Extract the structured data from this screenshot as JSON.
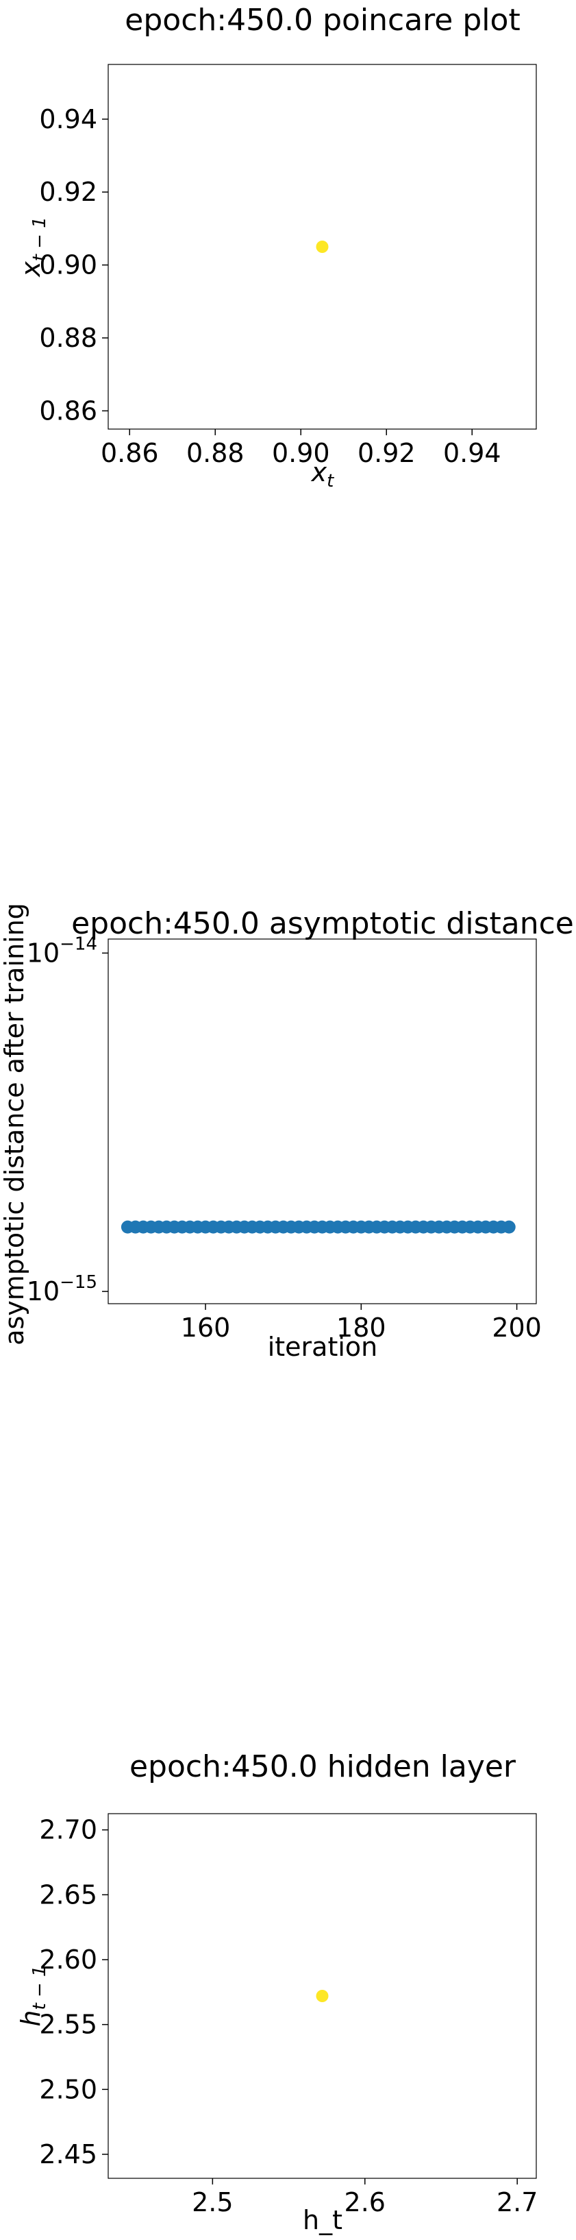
{
  "chart_data": [
    {
      "type": "scatter",
      "title": "epoch:450.0 poincare plot",
      "xlabel": "x_t",
      "ylabel": "x_{t-1}",
      "xlim": [
        0.855,
        0.955
      ],
      "ylim": [
        0.855,
        0.955
      ],
      "xticks": [
        0.86,
        0.88,
        0.9,
        0.92,
        0.94
      ],
      "xtick_labels": [
        "0.86",
        "0.88",
        "0.90",
        "0.92",
        "0.94"
      ],
      "yticks": [
        0.86,
        0.88,
        0.9,
        0.92,
        0.94
      ],
      "ytick_labels": [
        "0.86",
        "0.88",
        "0.90",
        "0.92",
        "0.94"
      ],
      "points": [
        {
          "x": 0.905,
          "y": 0.905
        }
      ],
      "color": "#fde725",
      "grid": false
    },
    {
      "type": "scatter",
      "title": "epoch:450.0 asymptotic distance",
      "xlabel": "iteration",
      "ylabel": "asymptotic distance after training",
      "xlim": [
        147.5,
        202.5
      ],
      "ylim": [
        9.2e-16,
        1.1e-14
      ],
      "yscale": "log",
      "xticks": [
        160,
        180,
        200
      ],
      "xtick_labels": [
        "160",
        "180",
        "200"
      ],
      "yticks": [
        1e-15,
        1e-14
      ],
      "ytick_labels": [
        {
          "base": "10",
          "exp": "−15"
        },
        {
          "base": "10",
          "exp": "−14"
        }
      ],
      "x": [
        150,
        151,
        152,
        153,
        154,
        155,
        156,
        157,
        158,
        159,
        160,
        161,
        162,
        163,
        164,
        165,
        166,
        167,
        168,
        169,
        170,
        171,
        172,
        173,
        174,
        175,
        176,
        177,
        178,
        179,
        180,
        181,
        182,
        183,
        184,
        185,
        186,
        187,
        188,
        189,
        190,
        191,
        192,
        193,
        194,
        195,
        196,
        197,
        198,
        199
      ],
      "y_constant": 1.55e-15,
      "color": "#1f77b4",
      "grid": false
    },
    {
      "type": "scatter",
      "title": "epoch:450.0 hidden layer",
      "xlabel": "h_t",
      "ylabel": "h_{t-1}",
      "xlim": [
        2.4315,
        2.7125
      ],
      "ylim": [
        2.4315,
        2.7125
      ],
      "xticks": [
        2.5,
        2.6,
        2.7
      ],
      "xtick_labels": [
        "2.5",
        "2.6",
        "2.7"
      ],
      "yticks": [
        2.45,
        2.5,
        2.55,
        2.6,
        2.65,
        2.7
      ],
      "ytick_labels": [
        "2.45",
        "2.50",
        "2.55",
        "2.60",
        "2.65",
        "2.70"
      ],
      "points": [
        {
          "x": 2.572,
          "y": 2.572
        }
      ],
      "color": "#fde725",
      "grid": false
    }
  ]
}
